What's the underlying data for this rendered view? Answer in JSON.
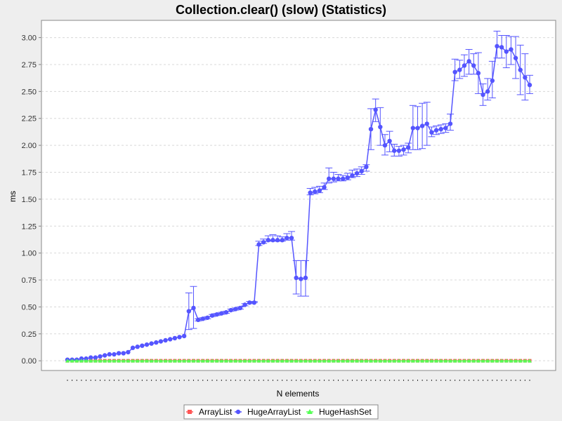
{
  "chart_data": {
    "type": "line",
    "title": "Collection.clear() (slow) (Statistics)",
    "xlabel": "N elements",
    "ylabel": "ms",
    "ylim": [
      -0.09,
      3.16
    ],
    "y_ticks": [
      "0.00",
      "0.25",
      "0.50",
      "0.75",
      "1.00",
      "1.25",
      "1.50",
      "1.75",
      "2.00",
      "2.25",
      "2.50",
      "2.75",
      "3.00"
    ],
    "grid": true,
    "legend_position": "bottom",
    "legend": [
      "ArrayList",
      "HugeArrayList",
      "HugeHashSet"
    ],
    "n_points": 100,
    "series": [
      {
        "name": "ArrayList",
        "color": "#ff5555",
        "marker": "square",
        "values": [
          0.0,
          0.0,
          0.0,
          0.0,
          0.0,
          0.0,
          0.0,
          0.0,
          0.0,
          0.0,
          0.0,
          0.0,
          0.0,
          0.0,
          0.0,
          0.0,
          0.0,
          0.0,
          0.0,
          0.0,
          0.0,
          0.0,
          0.0,
          0.0,
          0.0,
          0.0,
          0.0,
          0.0,
          0.0,
          0.0,
          0.0,
          0.0,
          0.0,
          0.0,
          0.0,
          0.0,
          0.0,
          0.0,
          0.0,
          0.0,
          0.0,
          0.0,
          0.0,
          0.0,
          0.0,
          0.0,
          0.0,
          0.0,
          0.0,
          0.0,
          0.0,
          0.0,
          0.0,
          0.0,
          0.0,
          0.0,
          0.0,
          0.0,
          0.0,
          0.0,
          0.0,
          0.0,
          0.0,
          0.0,
          0.0,
          0.0,
          0.0,
          0.0,
          0.0,
          0.0,
          0.0,
          0.0,
          0.0,
          0.0,
          0.0,
          0.0,
          0.0,
          0.0,
          0.0,
          0.0,
          0.0,
          0.0,
          0.0,
          0.0,
          0.0,
          0.0,
          0.0,
          0.0,
          0.0,
          0.0,
          0.0,
          0.0,
          0.0,
          0.0,
          0.0,
          0.0,
          0.0,
          0.0,
          0.0,
          0.0
        ]
      },
      {
        "name": "HugeArrayList",
        "color": "#5555ff",
        "marker": "circle",
        "values": [
          0.01,
          0.01,
          0.01,
          0.02,
          0.02,
          0.03,
          0.03,
          0.04,
          0.05,
          0.06,
          0.06,
          0.07,
          0.07,
          0.08,
          0.12,
          0.13,
          0.14,
          0.15,
          0.16,
          0.17,
          0.18,
          0.19,
          0.2,
          0.21,
          0.22,
          0.23,
          0.46,
          0.49,
          0.38,
          0.39,
          0.4,
          0.42,
          0.43,
          0.44,
          0.45,
          0.47,
          0.48,
          0.49,
          0.52,
          0.54,
          0.54,
          1.08,
          1.1,
          1.12,
          1.12,
          1.12,
          1.12,
          1.14,
          1.14,
          0.77,
          0.76,
          0.77,
          1.56,
          1.57,
          1.58,
          1.61,
          1.69,
          1.69,
          1.69,
          1.69,
          1.7,
          1.72,
          1.74,
          1.76,
          1.8,
          2.15,
          2.33,
          2.17,
          2.0,
          2.04,
          1.95,
          1.95,
          1.96,
          1.98,
          2.16,
          2.16,
          2.18,
          2.2,
          2.12,
          2.14,
          2.15,
          2.16,
          2.2,
          2.68,
          2.7,
          2.74,
          2.78,
          2.74,
          2.67,
          2.47,
          2.5,
          2.6,
          2.92,
          2.91,
          2.87,
          2.89,
          2.81,
          2.7,
          2.63,
          2.56
        ],
        "error_low": [
          0.01,
          0.01,
          0.01,
          0.02,
          0.02,
          0.03,
          0.03,
          0.04,
          0.05,
          0.06,
          0.06,
          0.07,
          0.07,
          0.08,
          0.12,
          0.13,
          0.14,
          0.15,
          0.16,
          0.17,
          0.18,
          0.19,
          0.2,
          0.21,
          0.22,
          0.23,
          0.29,
          0.3,
          0.37,
          0.38,
          0.39,
          0.41,
          0.42,
          0.43,
          0.44,
          0.46,
          0.47,
          0.48,
          0.51,
          0.53,
          0.54,
          1.07,
          1.09,
          1.11,
          1.11,
          1.11,
          1.11,
          1.12,
          1.12,
          0.62,
          0.6,
          0.6,
          1.54,
          1.55,
          1.56,
          1.59,
          1.65,
          1.66,
          1.67,
          1.67,
          1.68,
          1.7,
          1.71,
          1.73,
          1.76,
          1.96,
          2.22,
          2.0,
          1.91,
          1.94,
          1.9,
          1.9,
          1.91,
          1.93,
          1.96,
          1.96,
          1.97,
          2.0,
          2.08,
          2.1,
          2.11,
          2.12,
          2.14,
          2.6,
          2.62,
          2.64,
          2.66,
          2.66,
          2.48,
          2.37,
          2.42,
          2.44,
          2.81,
          2.81,
          2.72,
          2.75,
          2.62,
          2.47,
          2.42,
          2.48
        ],
        "error_high": [
          0.01,
          0.01,
          0.01,
          0.02,
          0.02,
          0.03,
          0.03,
          0.04,
          0.05,
          0.06,
          0.06,
          0.07,
          0.07,
          0.08,
          0.12,
          0.13,
          0.14,
          0.15,
          0.16,
          0.17,
          0.18,
          0.19,
          0.2,
          0.21,
          0.22,
          0.23,
          0.63,
          0.69,
          0.39,
          0.4,
          0.41,
          0.43,
          0.44,
          0.45,
          0.46,
          0.48,
          0.49,
          0.5,
          0.53,
          0.55,
          0.55,
          1.11,
          1.13,
          1.16,
          1.17,
          1.16,
          1.15,
          1.18,
          1.2,
          0.93,
          0.93,
          0.93,
          1.6,
          1.61,
          1.62,
          1.65,
          1.79,
          1.75,
          1.73,
          1.72,
          1.74,
          1.77,
          1.78,
          1.8,
          1.82,
          2.34,
          2.43,
          2.35,
          2.1,
          2.13,
          2.01,
          1.99,
          2.0,
          2.02,
          2.37,
          2.36,
          2.39,
          2.4,
          2.17,
          2.18,
          2.19,
          2.2,
          2.29,
          2.8,
          2.79,
          2.84,
          2.89,
          2.85,
          2.86,
          2.57,
          2.62,
          2.78,
          3.06,
          3.02,
          3.02,
          3.01,
          3.01,
          2.93,
          2.85,
          2.65
        ]
      },
      {
        "name": "HugeHashSet",
        "color": "#55ff55",
        "marker": "triangle",
        "values": [
          0.0,
          0.0,
          0.0,
          0.0,
          0.0,
          0.0,
          0.0,
          0.0,
          0.0,
          0.0,
          0.0,
          0.0,
          0.0,
          0.0,
          0.0,
          0.0,
          0.0,
          0.0,
          0.0,
          0.0,
          0.0,
          0.0,
          0.0,
          0.0,
          0.0,
          0.0,
          0.0,
          0.0,
          0.0,
          0.0,
          0.0,
          0.0,
          0.0,
          0.0,
          0.0,
          0.0,
          0.0,
          0.0,
          0.0,
          0.0,
          0.0,
          0.0,
          0.0,
          0.0,
          0.0,
          0.0,
          0.0,
          0.0,
          0.0,
          0.0,
          0.0,
          0.0,
          0.0,
          0.0,
          0.0,
          0.0,
          0.0,
          0.0,
          0.0,
          0.0,
          0.0,
          0.0,
          0.0,
          0.0,
          0.0,
          0.0,
          0.0,
          0.0,
          0.0,
          0.0,
          0.0,
          0.0,
          0.0,
          0.0,
          0.0,
          0.0,
          0.0,
          0.0,
          0.0,
          0.0,
          0.0,
          0.0,
          0.0,
          0.0,
          0.0,
          0.0,
          0.0,
          0.0,
          0.0,
          0.0,
          0.0,
          0.0,
          0.0,
          0.0,
          0.0,
          0.0,
          0.0,
          0.0,
          0.0,
          0.0
        ]
      }
    ]
  },
  "colors": {
    "background": "#eeeeee",
    "plot_background": "#ffffff",
    "gridline": "#d8d8d8",
    "axis": "#888888"
  }
}
